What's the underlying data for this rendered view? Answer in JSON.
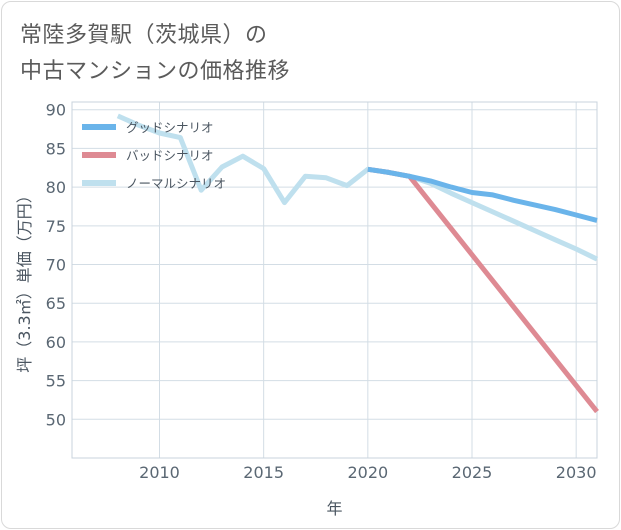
{
  "title": "常陸多賀駅（茨城県）の\n中古マンションの価格推移",
  "chart_data": {
    "type": "line",
    "xlabel": "年",
    "ylabel": "坪（3.3㎡）単価（万円）",
    "xlim": [
      2005.8,
      2031
    ],
    "ylim": [
      45,
      91
    ],
    "x_ticks": [
      2010,
      2015,
      2020,
      2025,
      2030
    ],
    "y_ticks": [
      50,
      55,
      60,
      65,
      70,
      75,
      80,
      85,
      90
    ],
    "grid": true,
    "legend_position": "top-left",
    "series": [
      {
        "name": "グッドシナリオ",
        "color": "#6ab4ea",
        "points": [
          [
            2020,
            82.3
          ],
          [
            2021,
            81.9
          ],
          [
            2022,
            81.4
          ],
          [
            2023,
            80.8
          ],
          [
            2024,
            80.0
          ],
          [
            2025,
            79.3
          ],
          [
            2026,
            79.0
          ],
          [
            2027,
            78.3
          ],
          [
            2028,
            77.7
          ],
          [
            2029,
            77.1
          ],
          [
            2030,
            76.4
          ],
          [
            2031,
            75.7
          ]
        ]
      },
      {
        "name": "バッドシナリオ",
        "color": "#de8a93",
        "points": [
          [
            2020,
            82.3
          ],
          [
            2021,
            81.9
          ],
          [
            2022,
            81.4
          ],
          [
            2031,
            51.0
          ]
        ]
      },
      {
        "name": "ノーマルシナリオ",
        "color": "#bfe0ee",
        "points": [
          [
            2008,
            89.2
          ],
          [
            2009,
            88.0
          ],
          [
            2010,
            87.0
          ],
          [
            2011,
            86.4
          ],
          [
            2012,
            79.6
          ],
          [
            2013,
            82.6
          ],
          [
            2014,
            84.0
          ],
          [
            2015,
            82.4
          ],
          [
            2016,
            78.0
          ],
          [
            2017,
            81.4
          ],
          [
            2018,
            81.2
          ],
          [
            2019,
            80.2
          ],
          [
            2020,
            82.3
          ],
          [
            2021,
            81.9
          ],
          [
            2022,
            81.4
          ],
          [
            2023,
            80.5
          ],
          [
            2024,
            79.2
          ],
          [
            2025,
            78.0
          ],
          [
            2026,
            76.8
          ],
          [
            2027,
            75.6
          ],
          [
            2028,
            74.4
          ],
          [
            2029,
            73.2
          ],
          [
            2030,
            72.0
          ],
          [
            2031,
            70.7
          ]
        ]
      }
    ]
  }
}
